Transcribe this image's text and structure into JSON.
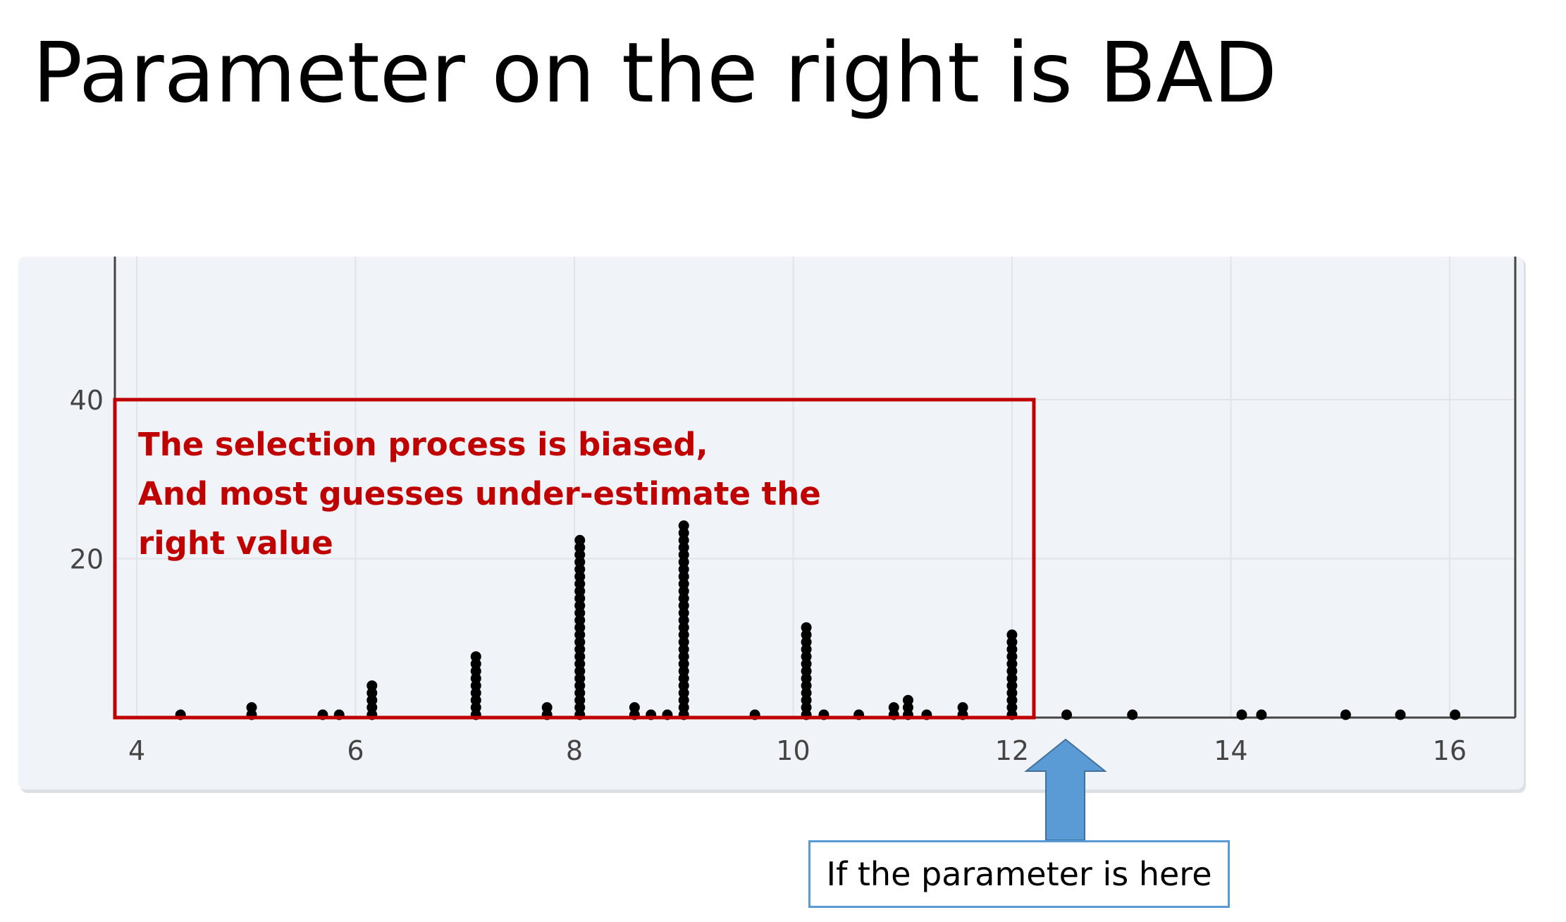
{
  "slide": {
    "title": "Parameter on the right is BAD",
    "annotation_lines": [
      "The selection process is biased,",
      "And most guesses under-estimate the",
      "right value"
    ],
    "callout": "If the parameter is here"
  },
  "colors": {
    "plot_background": "#f0f3f7",
    "marker": "#000000",
    "highlight_box": "#c00000",
    "arrow_fill": "#5b9bd5",
    "arrow_stroke": "#41719c"
  },
  "chart_data": {
    "type": "scatter",
    "style": "dot-plot",
    "xlim": [
      3.8,
      16.6
    ],
    "ylim": [
      0,
      58
    ],
    "x_ticks": [
      4,
      6,
      8,
      10,
      12,
      14,
      16
    ],
    "y_ticks": [
      20,
      40
    ],
    "grid": true,
    "highlight_x_range": [
      3.8,
      12.2
    ],
    "points": [
      {
        "x": 4.4,
        "count": 1
      },
      {
        "x": 5.05,
        "count": 2
      },
      {
        "x": 5.7,
        "count": 1
      },
      {
        "x": 5.85,
        "count": 1
      },
      {
        "x": 6.15,
        "count": 5
      },
      {
        "x": 7.1,
        "count": 9
      },
      {
        "x": 7.75,
        "count": 2
      },
      {
        "x": 8.05,
        "count": 25
      },
      {
        "x": 8.55,
        "count": 2
      },
      {
        "x": 8.7,
        "count": 1
      },
      {
        "x": 8.85,
        "count": 1
      },
      {
        "x": 9.0,
        "count": 27
      },
      {
        "x": 9.65,
        "count": 1
      },
      {
        "x": 10.12,
        "count": 13
      },
      {
        "x": 10.28,
        "count": 1
      },
      {
        "x": 10.6,
        "count": 1
      },
      {
        "x": 10.92,
        "count": 2
      },
      {
        "x": 11.05,
        "count": 3
      },
      {
        "x": 11.22,
        "count": 1
      },
      {
        "x": 11.55,
        "count": 2
      },
      {
        "x": 12.0,
        "count": 12
      },
      {
        "x": 12.5,
        "count": 1
      },
      {
        "x": 13.1,
        "count": 1
      },
      {
        "x": 14.1,
        "count": 1
      },
      {
        "x": 14.28,
        "count": 1
      },
      {
        "x": 15.05,
        "count": 1
      },
      {
        "x": 15.55,
        "count": 1
      },
      {
        "x": 16.05,
        "count": 1
      }
    ]
  }
}
